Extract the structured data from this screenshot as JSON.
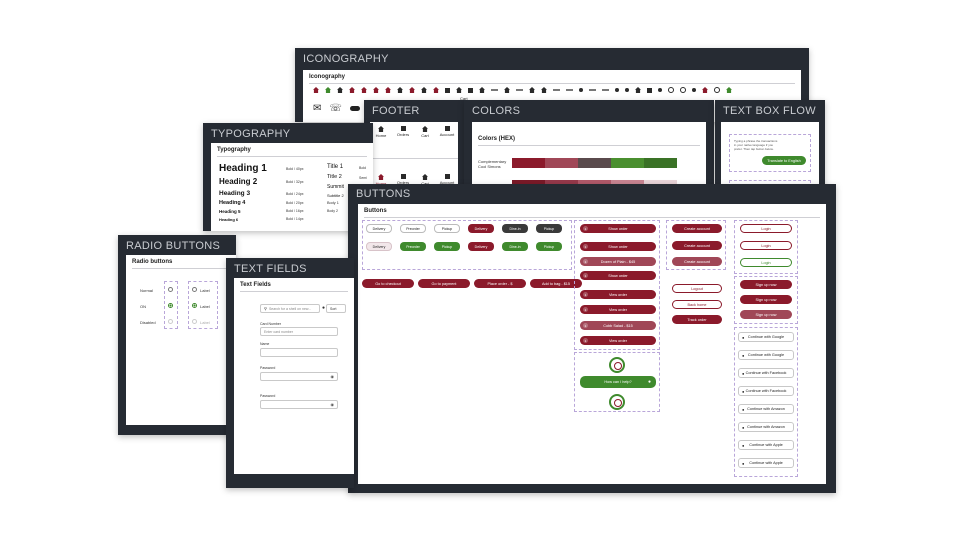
{
  "cards": {
    "iconography": "ICONOGRAPHY",
    "footer": "FOOTER",
    "colors": "COLORS",
    "text_box_flow": "TEXT BOX FLOW",
    "typography": "TYPOGRAPHY",
    "buttons": "BUTTONS",
    "radio_buttons": "RADIO BUTTONS",
    "text_fields": "TEXT FIELDS"
  },
  "iconography": {
    "title": "Iconography",
    "cart_label": "Cart"
  },
  "footer": {
    "items": [
      {
        "label": "Home",
        "icon": "home-icon"
      },
      {
        "label": "Orders",
        "icon": "orders-icon"
      },
      {
        "label": "Cart",
        "icon": "cart-icon"
      },
      {
        "label": "Account",
        "icon": "account-icon"
      }
    ]
  },
  "colors": {
    "title": "Colors (HEX)",
    "row_label": "Complementary Cool Simons",
    "swatches": [
      "#8b1a2b",
      "#a04757",
      "#5a4a4c",
      "#4a8f2f",
      "#3a7226"
    ],
    "swatches2": [
      "#7a1a28",
      "#96394b",
      "#b15a6a",
      "#c98592",
      "#e9d4d8"
    ]
  },
  "text_box_flow": {
    "message": "Typing a phrase the transactions in your native language if you prefer. Then tap button below.",
    "button": "Translate to English"
  },
  "typography": {
    "title": "Typography",
    "headings": [
      {
        "label": "Heading 1",
        "meta": "Bold / 40px"
      },
      {
        "label": "Heading 2",
        "meta": "Bold / 32px"
      },
      {
        "label": "Heading 3",
        "meta": "Bold / 24px"
      },
      {
        "label": "Heading 4",
        "meta": "Bold / 20px"
      },
      {
        "label": "Heading 5",
        "meta": "Bold / 16px"
      },
      {
        "label": "Heading 6",
        "meta": "Bold / 14px"
      }
    ],
    "right": [
      "Title 1",
      "Title 2",
      "Summit",
      "Subtitle 2",
      "Body 1",
      "Body 2"
    ],
    "right_meta": [
      "Bold",
      "Semi"
    ]
  },
  "buttons": {
    "title": "Buttons",
    "chips_row1": [
      "Delivery",
      "Preorder",
      "Pickup",
      "Delivery",
      "Dine-in",
      "Pickup"
    ],
    "chips_row2": [
      "Delivery",
      "Preorder",
      "Pickup",
      "Delivery",
      "Dine-in",
      "Pickup"
    ],
    "wide": [
      "Go to checkout",
      "Go to payment",
      "Place order - $",
      "Add to bag - $15"
    ],
    "view_col": [
      "Show order",
      "Show order",
      "Dozen of Plain - $45",
      "Show order",
      "View order",
      "View order",
      "Cobb Salad - $15",
      "View order"
    ],
    "voice": "How can I help?",
    "account_col": [
      "Create account",
      "Create account",
      "Create account",
      "Logout",
      "Back home",
      "Track order"
    ],
    "login_col": [
      "Login",
      "Login",
      "Login",
      "Sign up now",
      "Sign up now",
      "Sign up now"
    ],
    "social": [
      "Continue with Google",
      "Continue with Google",
      "Continue with Facebook",
      "Continue with Facebook",
      "Continue with Amazon",
      "Continue with Amazon",
      "Continue with Apple",
      "Continue with Apple"
    ]
  },
  "radio": {
    "title": "Radio buttons",
    "states": [
      "Normal",
      "ON",
      "Disabled"
    ],
    "label": "Label"
  },
  "text_fields": {
    "title": "Text Fields",
    "search_placeholder": "Search for a shell on new...",
    "filter": "Sort",
    "card_label": "Card Number",
    "card_placeholder": "Enter card number",
    "name_label": "Name",
    "password_label": "Password",
    "password_label2": "Password"
  }
}
